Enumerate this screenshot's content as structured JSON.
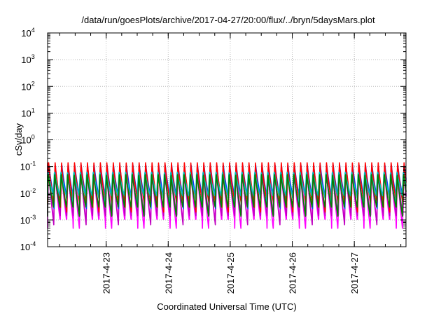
{
  "chart_data": {
    "type": "line",
    "title": "/data/run/goesPlots/archive/2017-04-27/20:00/flux/../bryn/5daysMars.plot",
    "xlabel": "Coordinated Universal Time (UTC)",
    "ylabel": "cSv/day",
    "yscale": "log",
    "ylim": [
      0.0001,
      10000
    ],
    "y_ticks": [
      {
        "base": "10",
        "exp": "-4"
      },
      {
        "base": "10",
        "exp": "-3"
      },
      {
        "base": "10",
        "exp": "-2"
      },
      {
        "base": "10",
        "exp": "-1"
      },
      {
        "base": "10",
        "exp": "0"
      },
      {
        "base": "10",
        "exp": "1"
      },
      {
        "base": "10",
        "exp": "2"
      },
      {
        "base": "10",
        "exp": "3"
      },
      {
        "base": "10",
        "exp": "4"
      }
    ],
    "xlim": [
      "2017-04-22T01:20",
      "2017-04-27T20:00"
    ],
    "x_ticks": [
      "2017-4-23",
      "2017-4-24",
      "2017-4-25",
      "2017-4-26",
      "2017-4-27"
    ],
    "grid": true,
    "pattern": {
      "period_hours": 2.5,
      "dip_every_n_cycles": 5
    },
    "series": [
      {
        "color": "#ff00ff",
        "peak": 0.085,
        "trough": 0.0009,
        "phase_hours": 0.12
      },
      {
        "color": "#c000c0",
        "peak": 0.095,
        "trough": 0.0014,
        "phase_hours": 0.08
      },
      {
        "color": "#0040ff",
        "peak": 0.14,
        "trough": 0.006,
        "phase_hours": 0.0
      },
      {
        "color": "#ff0000",
        "peak": 0.15,
        "trough": 0.004,
        "phase_hours": 0.05
      },
      {
        "color": "#00c0c0",
        "peak": 0.07,
        "trough": 0.008,
        "phase_hours": 0.3
      },
      {
        "color": "#008000",
        "peak": 0.06,
        "trough": 0.003,
        "phase_hours": 0.2
      }
    ]
  }
}
